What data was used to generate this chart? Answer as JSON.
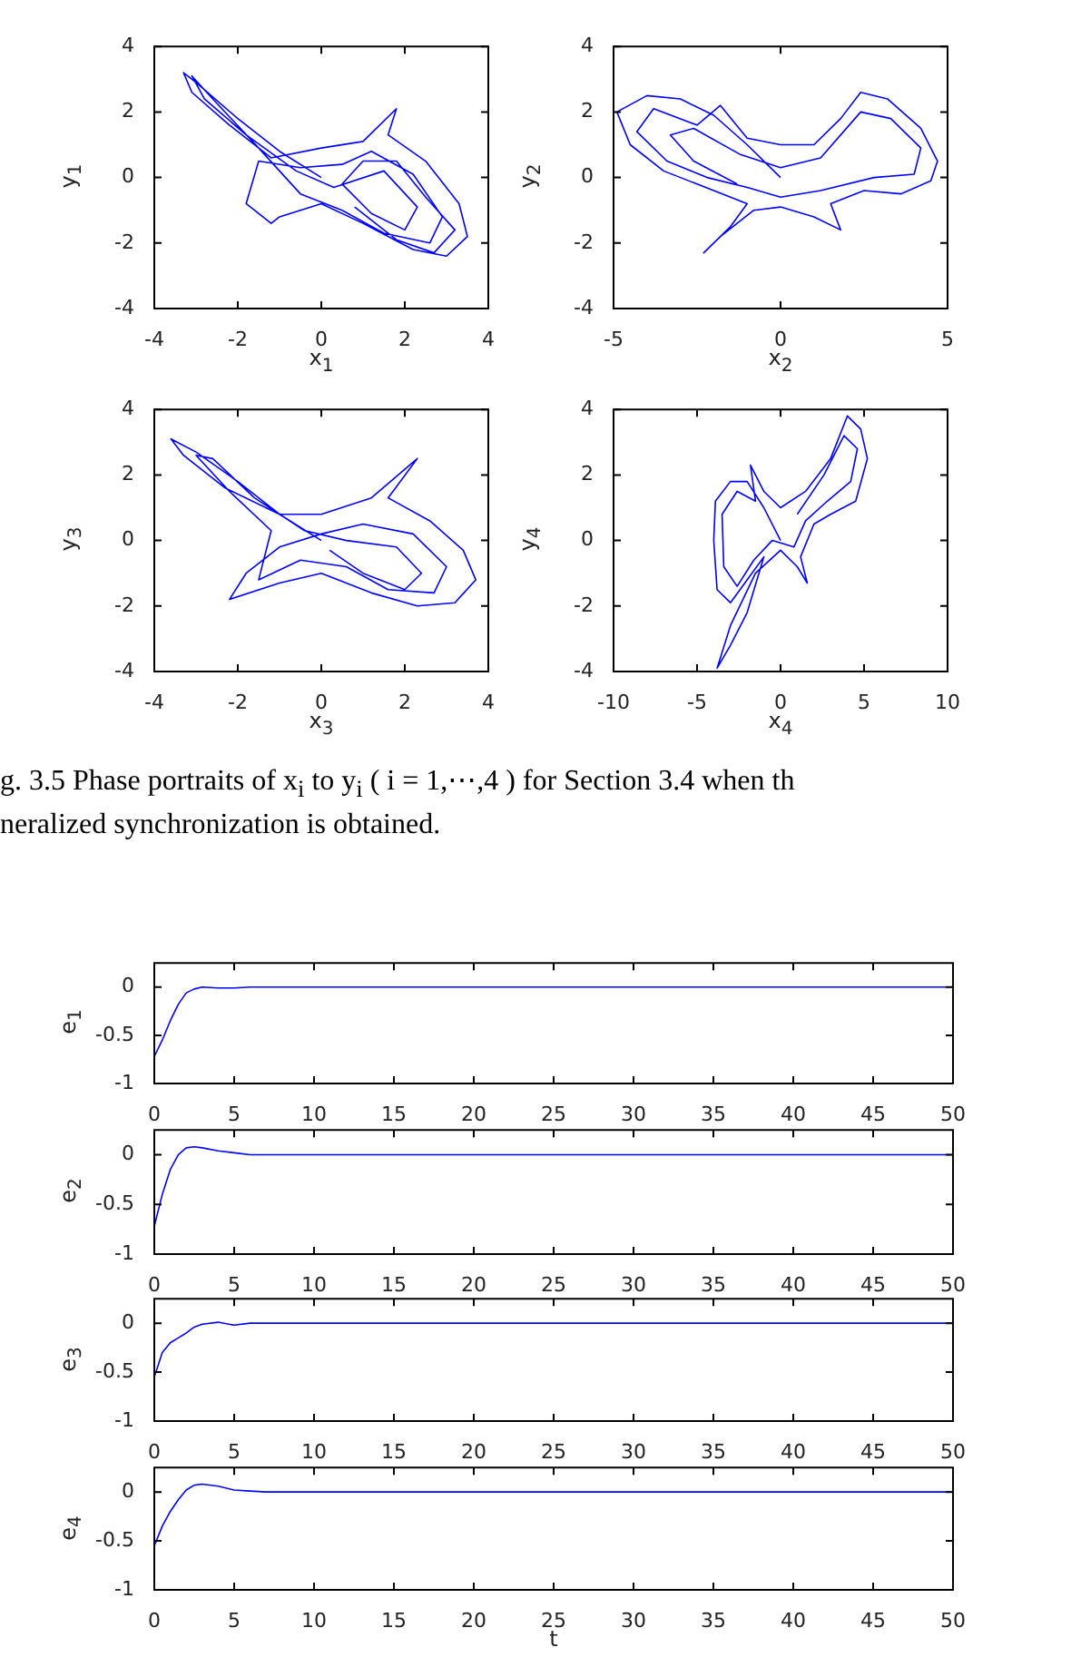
{
  "chart_data": [
    {
      "type": "line",
      "xlabel": "x$_{1}$",
      "ylabel": "y$_{1}$",
      "xlim": [
        -4,
        4
      ],
      "ylim": [
        -4,
        4
      ],
      "xticks": [
        -4,
        -2,
        0,
        2,
        4
      ],
      "yticks": [
        -4,
        -2,
        0,
        2,
        4
      ],
      "marker": "none",
      "series": [
        {
          "color": "#0000ff",
          "x": [
            0,
            -1,
            -2,
            -3,
            -3.3,
            -3.1,
            -2.2,
            -1.2,
            0,
            1,
            1.8,
            1.6,
            2.5,
            3.3,
            3.5,
            3,
            2.2,
            1,
            0,
            -1,
            -1.2,
            -1.8,
            -1.5,
            -0.5,
            0.5,
            1.2,
            2.2,
            2.9,
            2.6,
            1.5,
            0.5,
            -0.5,
            -1.5,
            -2.6,
            -3.1,
            -2.8,
            -1.8,
            -0.6,
            0.3,
            1.5,
            2.3,
            2,
            1.2,
            0.5,
            1,
            1.8,
            2.5,
            3.2,
            2.7,
            1.8,
            0.8
          ],
          "values": [
            0,
            0.8,
            1.8,
            2.9,
            3.2,
            2.6,
            1.6,
            0.6,
            0.9,
            1.1,
            2.1,
            1.3,
            0.5,
            -0.8,
            -1.8,
            -2.4,
            -2.2,
            -1.4,
            -0.8,
            -1.2,
            -1.4,
            -0.8,
            0.5,
            0.3,
            0.4,
            0.8,
            0.1,
            -1.2,
            -2,
            -1.7,
            -1,
            -0.5,
            0.9,
            2.4,
            3.1,
            2.4,
            1.3,
            0.2,
            -0.3,
            0.2,
            -0.9,
            -1.6,
            -1.1,
            -0.2,
            0.5,
            0.5,
            -0.6,
            -1.6,
            -2.3,
            -1.9,
            -0.9
          ]
        }
      ]
    },
    {
      "type": "line",
      "xlabel": "x$_{2}$",
      "ylabel": "y$_{2}$",
      "xlim": [
        -5,
        5
      ],
      "ylim": [
        -4,
        4
      ],
      "xticks": [
        -5,
        0,
        5
      ],
      "yticks": [
        -4,
        -2,
        0,
        2,
        4
      ],
      "marker": "none",
      "series": [
        {
          "color": "#0000ff",
          "x": [
            0,
            -1,
            -2,
            -3,
            -4,
            -4.9,
            -4.5,
            -3.5,
            -2,
            -1,
            -1.5,
            -2.3,
            -1.8,
            -0.8,
            0,
            1,
            1.8,
            1.5,
            2.5,
            3.6,
            4.5,
            4.7,
            4.2,
            3.2,
            2.4,
            1.8,
            1,
            0,
            -1,
            -1.8,
            -2.5,
            -3.8,
            -4.3,
            -3.4,
            -2.2,
            -1,
            0,
            1.2,
            2.8,
            4,
            4.2,
            3.3,
            2.4,
            1.2,
            0,
            -1.2,
            -2.6,
            -3.3,
            -2.6,
            -1.3
          ],
          "values": [
            0,
            1,
            1.9,
            2.4,
            2.5,
            2,
            1,
            0.2,
            -0.4,
            -0.8,
            -1.5,
            -2.3,
            -1.8,
            -1,
            -0.9,
            -1.2,
            -1.6,
            -0.8,
            -0.4,
            -0.5,
            -0.1,
            0.5,
            1.5,
            2.4,
            2.6,
            1.8,
            1,
            1,
            1.2,
            2.2,
            1.6,
            2.1,
            1.4,
            0.5,
            0,
            -0.3,
            -0.6,
            -0.4,
            0,
            0.1,
            0.9,
            1.8,
            2,
            0.6,
            0.3,
            0.7,
            1.5,
            1.3,
            0.5,
            -0.2
          ]
        }
      ]
    },
    {
      "type": "line",
      "xlabel": "x$_{3}$",
      "ylabel": "y$_{3}$",
      "xlim": [
        -4,
        4
      ],
      "ylim": [
        -4,
        4
      ],
      "xticks": [
        -4,
        -2,
        0,
        2,
        4
      ],
      "yticks": [
        -4,
        -2,
        0,
        2,
        4
      ],
      "marker": "none",
      "series": [
        {
          "color": "#0000ff",
          "x": [
            0,
            -1,
            -2,
            -3,
            -3.6,
            -3.3,
            -2.3,
            -1,
            0,
            1.2,
            2.3,
            1.6,
            2.6,
            3.4,
            3.7,
            3.2,
            2.3,
            1.2,
            0,
            -1,
            -2.2,
            -1.8,
            -1,
            0,
            1,
            2.2,
            3,
            2.7,
            1.6,
            0.6,
            -0.5,
            -1.5,
            -1.2,
            -2.2,
            -3,
            -2.6,
            -1.6,
            -0.4,
            0.6,
            1.8,
            2.4,
            2,
            1,
            0.2
          ],
          "values": [
            0,
            0.8,
            1.8,
            2.7,
            3.1,
            2.6,
            1.6,
            0.8,
            0.8,
            1.3,
            2.5,
            1.3,
            0.6,
            -0.3,
            -1.2,
            -1.9,
            -2,
            -1.6,
            -1,
            -1.3,
            -1.8,
            -1,
            -0.2,
            0.2,
            0.5,
            0.2,
            -0.8,
            -1.6,
            -1.5,
            -0.8,
            -0.6,
            -1.2,
            0.3,
            1.5,
            2.6,
            2.5,
            1.3,
            0.3,
            0,
            -0.2,
            -1,
            -1.5,
            -1,
            -0.3
          ]
        }
      ]
    },
    {
      "type": "line",
      "xlabel": "x$_{4}$",
      "ylabel": "y$_{4}$",
      "xlim": [
        -10,
        10
      ],
      "ylim": [
        -4,
        4
      ],
      "xticks": [
        -10,
        -5,
        0,
        5,
        10
      ],
      "yticks": [
        -4,
        -2,
        0,
        2,
        4
      ],
      "marker": "none",
      "series": [
        {
          "color": "#0000ff",
          "x": [
            0,
            -1,
            -2,
            -3,
            -3.9,
            -4,
            -3.8,
            -3,
            -2,
            -1,
            -2,
            -3,
            -3.8,
            -3,
            -1.5,
            0,
            1,
            1.6,
            1.2,
            2,
            3,
            4.5,
            5.2,
            4.8,
            4,
            3,
            1.5,
            0,
            -1,
            -1.8,
            -1.5,
            -2.6,
            -3.5,
            -3.4,
            -2.6,
            -1.6,
            -0.5,
            0.8,
            1.5,
            2.8,
            4.2,
            4.6,
            3.8,
            2.6,
            1
          ],
          "values": [
            0,
            1,
            1.8,
            1.8,
            1.2,
            0,
            -1.5,
            -1.9,
            -1.2,
            -0.5,
            -2.2,
            -3.2,
            -3.9,
            -2.6,
            -1,
            -0.3,
            -0.8,
            -1.3,
            -0.5,
            0.5,
            0.8,
            1.2,
            2.5,
            3.4,
            3.8,
            2.5,
            1.5,
            1,
            1.5,
            2.3,
            1.2,
            1.5,
            0.8,
            -0.8,
            -1.4,
            -0.6,
            0,
            -0.2,
            0.6,
            1.2,
            1.8,
            2.8,
            3.2,
            2,
            0.8
          ]
        }
      ]
    },
    {
      "type": "other",
      "annotations": [
        "g. 3.5 Phase portraits of x$_{i}$ to y$_{i}$ ( i = 1,⋯,4 ) for Section 3.4 when th",
        "neralized synchronization is obtained."
      ]
    },
    {
      "type": "line",
      "ylabel": "e$_{1}$",
      "xlim": [
        0,
        50
      ],
      "ylim": [
        -1,
        0.25
      ],
      "xticks": [
        0,
        5,
        10,
        15,
        20,
        25,
        30,
        35,
        40,
        45,
        50
      ],
      "yticks": [
        -1,
        -0.5,
        0
      ],
      "marker": "none",
      "series": [
        {
          "color": "#0000ff",
          "x": [
            0,
            0.5,
            1,
            1.5,
            2,
            2.5,
            3,
            4,
            5,
            6,
            10,
            20,
            30,
            40,
            50
          ],
          "values": [
            -0.72,
            -0.55,
            -0.35,
            -0.18,
            -0.06,
            -0.02,
            0,
            -0.01,
            -0.01,
            0,
            0,
            0,
            0,
            0,
            0
          ]
        }
      ]
    },
    {
      "type": "line",
      "ylabel": "e$_{2}$",
      "xlim": [
        0,
        50
      ],
      "ylim": [
        -1,
        0.25
      ],
      "xticks": [
        0,
        5,
        10,
        15,
        20,
        25,
        30,
        35,
        40,
        45,
        50
      ],
      "yticks": [
        -1,
        -0.5,
        0
      ],
      "marker": "none",
      "series": [
        {
          "color": "#0000ff",
          "x": [
            0,
            0.5,
            1,
            1.5,
            2,
            2.5,
            3,
            4,
            5,
            6,
            10,
            20,
            30,
            40,
            50
          ],
          "values": [
            -0.72,
            -0.4,
            -0.15,
            0,
            0.07,
            0.08,
            0.07,
            0.04,
            0.02,
            0,
            0,
            0,
            0,
            0,
            0
          ]
        }
      ]
    },
    {
      "type": "line",
      "ylabel": "e$_{3}$",
      "xlim": [
        0,
        50
      ],
      "ylim": [
        -1,
        0.25
      ],
      "xticks": [
        0,
        5,
        10,
        15,
        20,
        25,
        30,
        35,
        40,
        45,
        50
      ],
      "yticks": [
        -1,
        -0.5,
        0
      ],
      "marker": "none",
      "series": [
        {
          "color": "#0000ff",
          "x": [
            0,
            0.5,
            1,
            1.5,
            2,
            2.5,
            3,
            4,
            5,
            6,
            10,
            20,
            30,
            40,
            50
          ],
          "values": [
            -0.55,
            -0.3,
            -0.2,
            -0.15,
            -0.1,
            -0.04,
            -0.01,
            0.01,
            -0.02,
            0,
            0,
            0,
            0,
            0,
            0
          ]
        }
      ]
    },
    {
      "type": "line",
      "xlabel": "t",
      "ylabel": "e$_{4}$",
      "xlim": [
        0,
        50
      ],
      "ylim": [
        -1,
        0.25
      ],
      "xticks": [
        0,
        5,
        10,
        15,
        20,
        25,
        30,
        35,
        40,
        45,
        50
      ],
      "yticks": [
        -1,
        -0.5,
        0
      ],
      "marker": "none",
      "series": [
        {
          "color": "#0000ff",
          "x": [
            0,
            0.5,
            1,
            1.5,
            2,
            2.5,
            3,
            4,
            5,
            6,
            7,
            10,
            20,
            30,
            40,
            50
          ],
          "values": [
            -0.55,
            -0.35,
            -0.2,
            -0.08,
            0.02,
            0.07,
            0.08,
            0.06,
            0.02,
            0.01,
            0,
            0,
            0,
            0,
            0,
            0
          ]
        }
      ]
    }
  ]
}
